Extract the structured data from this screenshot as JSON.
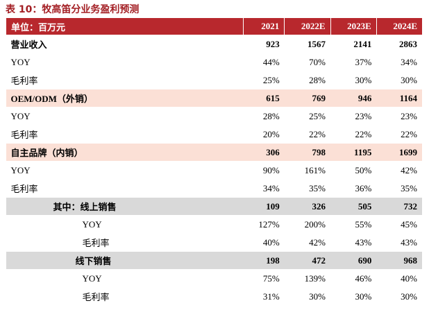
{
  "header": {
    "title": "表 10：牧高笛分业务盈利预测"
  },
  "table": {
    "columns": [
      "单位：百万元",
      "2021",
      "2022E",
      "2023E",
      "2024E"
    ],
    "rows": [
      [
        "营业收入",
        "923",
        "1567",
        "2141",
        "2863"
      ],
      [
        "YOY",
        "44%",
        "70%",
        "37%",
        "34%"
      ],
      [
        "毛利率",
        "25%",
        "28%",
        "30%",
        "30%"
      ],
      [
        "OEM/ODM（外销）",
        "615",
        "769",
        "946",
        "1164"
      ],
      [
        "YOY",
        "28%",
        "25%",
        "23%",
        "23%"
      ],
      [
        "毛利率",
        "20%",
        "22%",
        "22%",
        "22%"
      ],
      [
        "自主品牌（内销）",
        "306",
        "798",
        "1195",
        "1699"
      ],
      [
        "YOY",
        "90%",
        "161%",
        "50%",
        "42%"
      ],
      [
        "毛利率",
        "34%",
        "35%",
        "36%",
        "35%"
      ],
      [
        "其中：线上销售",
        "109",
        "326",
        "505",
        "732"
      ],
      [
        "YOY",
        "127%",
        "200%",
        "55%",
        "45%"
      ],
      [
        "毛利率",
        "40%",
        "42%",
        "43%",
        "43%"
      ],
      [
        "线下销售",
        "198",
        "472",
        "690",
        "968"
      ],
      [
        "YOY",
        "75%",
        "139%",
        "46%",
        "40%"
      ],
      [
        "毛利率",
        "31%",
        "30%",
        "30%",
        "30%"
      ]
    ]
  }
}
